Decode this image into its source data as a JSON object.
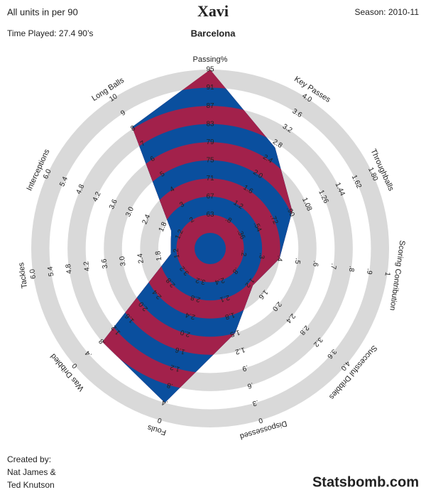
{
  "chart_data": {
    "type": "radar",
    "title": "Xavi",
    "subtitle": "Barcelona",
    "colors": [
      "#a2214b",
      "#0a4f9e"
    ],
    "ring_color": "#d9d9d9",
    "axes": [
      {
        "name": "Passing%",
        "lim": [
          59,
          95
        ],
        "ticks": [
          63,
          67,
          71,
          75,
          79,
          83,
          87,
          91,
          95
        ]
      },
      {
        "name": "Key Passes",
        "lim": [
          0.4,
          4
        ],
        "ticks": [
          {
            "value": 0.8,
            "label": ".8"
          },
          1.2,
          1.6,
          {
            "value": 2,
            "label": "2.0"
          },
          2.4,
          2.8,
          3.2,
          3.6,
          {
            "value": 4,
            "label": "4.0"
          }
        ]
      },
      {
        "name": "Throughballs",
        "lim": [
          0.18,
          1.8
        ],
        "ticks": [
          {
            "value": 0.36,
            "label": ".36"
          },
          {
            "value": 0.54,
            "label": ".54"
          },
          {
            "value": 0.72,
            "label": ".72"
          },
          {
            "value": 0.9,
            "label": ".90"
          },
          1.08,
          1.26,
          1.44,
          1.62,
          {
            "value": 1.8,
            "label": "1.80"
          }
        ]
      },
      {
        "name": "Scoring Contribution",
        "lim": [
          0.1,
          1
        ],
        "ticks": [
          {
            "value": 0.2,
            "label": ".2"
          },
          {
            "value": 0.3,
            "label": ".3"
          },
          {
            "value": 0.4,
            "label": ".4"
          },
          {
            "value": 0.5,
            "label": ".5"
          },
          {
            "value": 0.6,
            "label": ".6"
          },
          {
            "value": 0.7,
            "label": ".7"
          },
          {
            "value": 0.8,
            "label": ".8"
          },
          {
            "value": 0.9,
            "label": ".9"
          },
          1
        ]
      },
      {
        "name": "Successful Dribbles",
        "lim": [
          0.4,
          4
        ],
        "ticks": [
          {
            "value": 0.8,
            "label": ".8"
          },
          1.2,
          1.6,
          {
            "value": 2,
            "label": "2.0"
          },
          2.4,
          2.8,
          3.2,
          3.6,
          {
            "value": 4,
            "label": "4.0"
          }
        ]
      },
      {
        "name": "Dispossessed",
        "lim": [
          2.7,
          0
        ],
        "ticks": [
          2.4,
          2.1,
          1.8,
          1.5,
          1.2,
          {
            "value": 0.9,
            "label": ".9"
          },
          {
            "value": 0.6,
            "label": ".6"
          },
          {
            "value": 0.3,
            "label": ".3"
          },
          0
        ]
      },
      {
        "name": "Fouls",
        "lim": [
          3.6,
          0
        ],
        "ticks": [
          3.2,
          2.8,
          2.4,
          {
            "value": 2,
            "label": "2.0"
          },
          1.6,
          1.2,
          {
            "value": 0.8,
            "label": ".8"
          },
          {
            "value": 0.4,
            "label": ".4"
          },
          0
        ]
      },
      {
        "name": "Was Dribbled",
        "lim": [
          3.6,
          0
        ],
        "ticks": [
          3.2,
          2.8,
          2.4,
          {
            "value": 2,
            "label": "2.0"
          },
          1.6,
          1.2,
          {
            "value": 0.8,
            "label": ".8"
          },
          {
            "value": 0.4,
            "label": ".4"
          },
          0
        ]
      },
      {
        "name": "Tackles",
        "lim": [
          0.6,
          6
        ],
        "ticks": [
          1.2,
          1.8,
          2.4,
          {
            "value": 3,
            "label": "3.0"
          },
          3.6,
          4.2,
          4.8,
          5.4,
          {
            "value": 6,
            "label": "6.0"
          }
        ]
      },
      {
        "name": "Interceptions",
        "lim": [
          0.6,
          6
        ],
        "ticks": [
          1.2,
          1.8,
          2.4,
          {
            "value": 3,
            "label": "3.0"
          },
          3.6,
          4.2,
          4.8,
          5.4,
          {
            "value": 6,
            "label": "6.0"
          }
        ]
      },
      {
        "name": "Long Balls",
        "lim": [
          1,
          10
        ],
        "ticks": [
          2,
          3,
          4,
          5,
          6,
          7,
          8,
          9,
          10
        ]
      }
    ],
    "values": [
      95,
      2.7,
      0.92,
      0.4,
      1.3,
      1.5,
      0.4,
      0.8,
      1.4,
      1.5,
      8.1
    ]
  },
  "header": {
    "units_note": "All units in per 90",
    "season": "Season: 2010-11",
    "time_played": "Time Played: 27.4 90’s"
  },
  "credits": [
    "Created by:",
    "Nat James &",
    "Ted Knutson"
  ],
  "brand": "Statsbomb.com"
}
